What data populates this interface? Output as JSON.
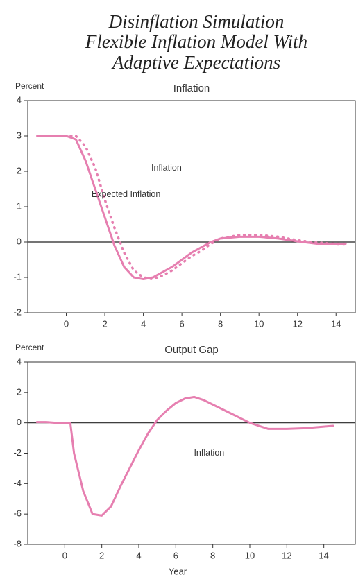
{
  "title": [
    "Disinflation Simulation",
    "Flexible Inflation Model With",
    "Adaptive Expectations"
  ],
  "chart_data": [
    {
      "type": "line",
      "title": "Inflation",
      "ylabel": "Percent",
      "x": [
        -1.5,
        -1,
        -0.5,
        0,
        0.5,
        1,
        1.5,
        2,
        2.5,
        3,
        3.5,
        4,
        4.5,
        5,
        5.5,
        6,
        6.5,
        7,
        7.5,
        8,
        9,
        10,
        11,
        12,
        13,
        14,
        14.5
      ],
      "series": [
        {
          "name": "Inflation",
          "color": "#e67fb0",
          "style": "solid",
          "values": [
            3,
            3,
            3,
            3,
            2.9,
            2.3,
            1.5,
            0.7,
            -0.1,
            -0.7,
            -1.0,
            -1.05,
            -1.0,
            -0.85,
            -0.7,
            -0.5,
            -0.3,
            -0.15,
            0,
            0.1,
            0.15,
            0.15,
            0.1,
            0.02,
            -0.05,
            -0.05,
            -0.05
          ]
        },
        {
          "name": "Expected Inflation",
          "color": "#e67fb0",
          "style": "dotted",
          "values": [
            3,
            3,
            3,
            3,
            3,
            2.7,
            2.1,
            1.2,
            0.4,
            -0.3,
            -0.8,
            -1.0,
            -1.05,
            -0.95,
            -0.8,
            -0.6,
            -0.4,
            -0.25,
            -0.05,
            0.1,
            0.2,
            0.2,
            0.15,
            0.05,
            -0.02,
            -0.05,
            -0.05
          ]
        }
      ],
      "xlim": [
        -2,
        15
      ],
      "xticks": [
        0,
        2,
        4,
        6,
        8,
        10,
        12,
        14
      ],
      "ylim": [
        -2,
        4
      ],
      "yticks": [
        -2,
        -1,
        0,
        1,
        2,
        3,
        4
      ]
    },
    {
      "type": "line",
      "title": "Output Gap",
      "ylabel": "Percent",
      "xlabel": "Year",
      "annotation": "Inflation",
      "x": [
        -1.5,
        -1,
        -0.5,
        0,
        0.3,
        0.5,
        1,
        1.5,
        2,
        2.5,
        3,
        3.5,
        4,
        4.5,
        5,
        5.5,
        6,
        6.5,
        7,
        7.5,
        8,
        9,
        10,
        11,
        12,
        13,
        14,
        14.5
      ],
      "color": "#e67fb0",
      "values": [
        0.05,
        0.05,
        0,
        0,
        0,
        -2,
        -4.5,
        -6,
        -6.1,
        -5.5,
        -4.2,
        -3,
        -1.8,
        -0.7,
        0.2,
        0.8,
        1.3,
        1.6,
        1.7,
        1.5,
        1.2,
        0.6,
        0,
        -0.4,
        -0.4,
        -0.35,
        -0.25,
        -0.2
      ],
      "xlim": [
        -2,
        15.7
      ],
      "xticks": [
        0,
        2,
        4,
        6,
        8,
        10,
        12,
        14
      ],
      "ylim": [
        -8,
        4
      ],
      "yticks": [
        -8,
        -6,
        -4,
        -2,
        0,
        2,
        4
      ]
    }
  ]
}
